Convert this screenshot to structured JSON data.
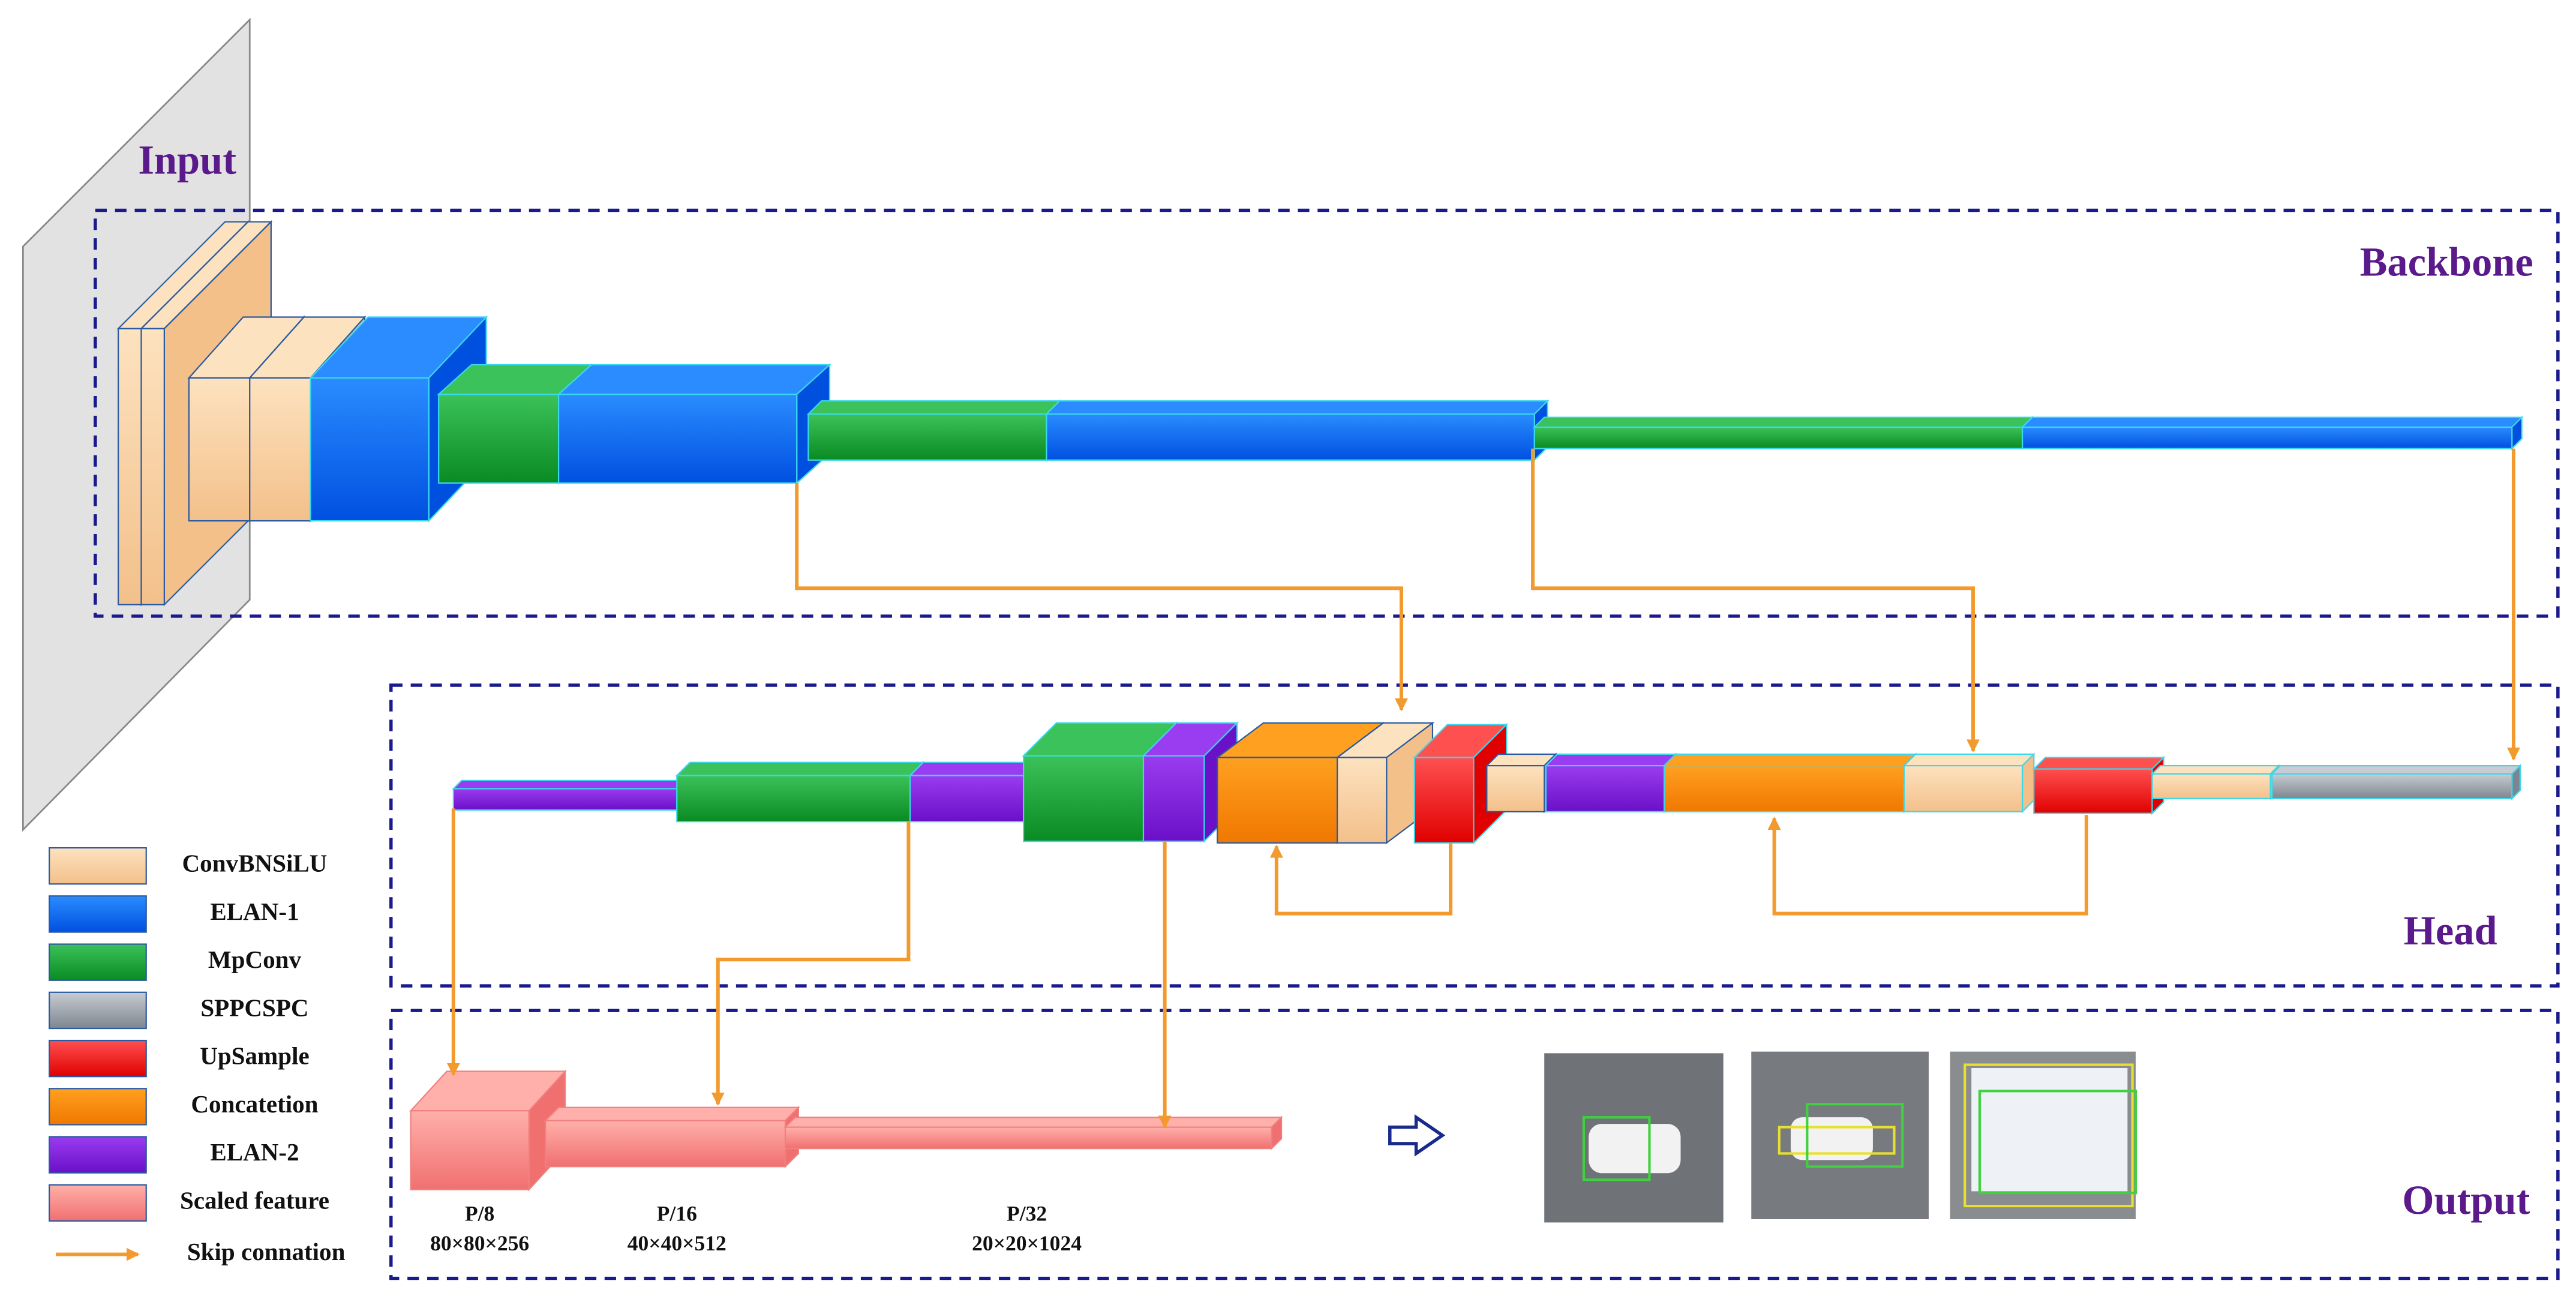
{
  "input_label": "Input",
  "sections": {
    "backbone": "Backbone",
    "head": "Head",
    "output": "Output"
  },
  "legend": [
    "ConvBNSiLU",
    "ELAN-1",
    "MpConv",
    "SPPCSPC",
    "UpSample",
    "Concatetion",
    "ELAN-2",
    "Scaled feature",
    "Skip connation"
  ],
  "scales": [
    {
      "name": "P/8",
      "shape": "80×80×256"
    },
    {
      "name": "P/16",
      "shape": "40×40×512"
    },
    {
      "name": "P/32",
      "shape": "20×20×1024"
    }
  ]
}
